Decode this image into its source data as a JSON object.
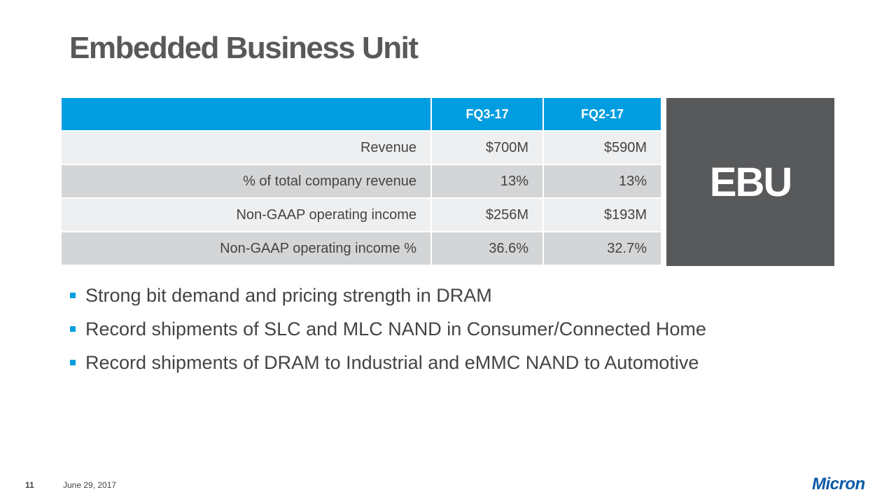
{
  "slide": {
    "title": "Embedded Business Unit",
    "page_number": "11",
    "date": "June 29, 2017",
    "logo_text": "Micron"
  },
  "table": {
    "headers": [
      "",
      "FQ3-17",
      "FQ2-17"
    ],
    "rows": [
      {
        "label": "Revenue",
        "fq3": "$700M",
        "fq2": "$590M"
      },
      {
        "label": "% of total company revenue",
        "fq3": "13%",
        "fq2": "13%"
      },
      {
        "label": "Non-GAAP operating income",
        "fq3": "$256M",
        "fq2": "$193M"
      },
      {
        "label": "Non-GAAP operating income %",
        "fq3": "36.6%",
        "fq2": "32.7%"
      }
    ]
  },
  "badge": {
    "label": "EBU"
  },
  "bullets": [
    "Strong bit demand and pricing strength in DRAM",
    "Record shipments of SLC and MLC NAND in Consumer/Connected Home",
    "Record shipments of DRAM to Industrial and eMMC NAND to Automotive"
  ],
  "colors": {
    "accent_blue": "#009de0",
    "title_gray": "#595959",
    "badge_gray": "#58595b",
    "row_light": "#eeeff0",
    "row_dark": "#d4d5d7",
    "logo_blue": "#0b5aa7"
  }
}
